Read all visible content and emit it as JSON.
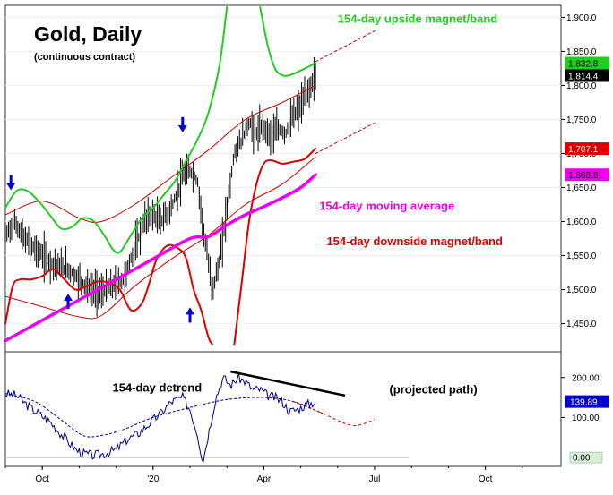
{
  "chart_data": {
    "type": "line",
    "title": "Gold, Daily",
    "subtitle": "(continuous contract)",
    "x_ticks": [
      "Oct",
      "'20",
      "Apr",
      "Jul",
      "Oct"
    ],
    "x_tick_months": [
      1,
      4,
      7,
      10,
      13
    ],
    "upper_panel": {
      "ylim": [
        1410,
        1915
      ],
      "y_ticks": [
        "1,900.0",
        "1,850.0",
        "1,800.0",
        "1,750.0",
        "1,700.0",
        "1,650.0",
        "1,600.0",
        "1,550.0",
        "1,500.0",
        "1,450.0"
      ],
      "y_tick_values": [
        1900,
        1850,
        1800,
        1750,
        1700,
        1650,
        1600,
        1550,
        1500,
        1450
      ],
      "price_points": [
        [
          0,
          1580
        ],
        [
          0.25,
          1600
        ],
        [
          0.5,
          1575
        ],
        [
          0.8,
          1560
        ],
        [
          1.1,
          1545
        ],
        [
          1.4,
          1535
        ],
        [
          1.7,
          1530
        ],
        [
          2.0,
          1515
        ],
        [
          2.3,
          1500
        ],
        [
          2.6,
          1495
        ],
        [
          2.9,
          1505
        ],
        [
          3.2,
          1515
        ],
        [
          3.4,
          1545
        ],
        [
          3.6,
          1575
        ],
        [
          3.8,
          1605
        ],
        [
          4.0,
          1610
        ],
        [
          4.2,
          1600
        ],
        [
          4.5,
          1620
        ],
        [
          4.8,
          1665
        ],
        [
          5.0,
          1675
        ],
        [
          5.2,
          1660
        ],
        [
          5.4,
          1575
        ],
        [
          5.6,
          1500
        ],
        [
          5.8,
          1540
        ],
        [
          6.0,
          1620
        ],
        [
          6.2,
          1700
        ],
        [
          6.4,
          1720
        ],
        [
          6.6,
          1745
        ],
        [
          6.8,
          1730
        ],
        [
          7.0,
          1740
        ],
        [
          7.2,
          1725
        ],
        [
          7.4,
          1735
        ],
        [
          7.6,
          1730
        ],
        [
          7.8,
          1755
        ],
        [
          8.0,
          1770
        ],
        [
          8.2,
          1790
        ],
        [
          8.4,
          1814.4
        ]
      ],
      "series": [
        {
          "name": "154-day upside magnet/band",
          "color": "#22cc22",
          "points": [
            [
              0,
              1620
            ],
            [
              0.3,
              1645
            ],
            [
              0.6,
              1645
            ],
            [
              0.9,
              1630
            ],
            [
              1.2,
              1610
            ],
            [
              1.5,
              1590
            ],
            [
              1.8,
              1592
            ],
            [
              2.1,
              1605
            ],
            [
              2.4,
              1600
            ],
            [
              2.7,
              1578
            ],
            [
              2.9,
              1560
            ],
            [
              3.1,
              1555
            ],
            [
              3.4,
              1580
            ],
            [
              3.7,
              1605
            ],
            [
              4.0,
              1620
            ],
            [
              4.3,
              1640
            ],
            [
              4.6,
              1660
            ],
            [
              4.9,
              1690
            ],
            [
              5.2,
              1720
            ],
            [
              5.5,
              1760
            ],
            [
              5.8,
              1830
            ],
            [
              6.0,
              1915
            ]
          ],
          "points_b": [
            [
              6.9,
              1915
            ],
            [
              7.1,
              1860
            ],
            [
              7.3,
              1825
            ],
            [
              7.5,
              1815
            ],
            [
              7.7,
              1815
            ],
            [
              8.0,
              1822
            ],
            [
              8.4,
              1832.8
            ]
          ]
        },
        {
          "name": "154-day downside magnet/band",
          "color": "#dd0000",
          "points": [
            [
              0,
              1450
            ],
            [
              0.2,
              1505
            ],
            [
              0.4,
              1515
            ],
            [
              0.7,
              1515
            ],
            [
              1.0,
              1520
            ],
            [
              1.3,
              1530
            ],
            [
              1.6,
              1515
            ],
            [
              1.9,
              1500
            ],
            [
              2.2,
              1505
            ],
            [
              2.5,
              1512
            ],
            [
              2.8,
              1510
            ],
            [
              3.1,
              1500
            ],
            [
              3.4,
              1470
            ],
            [
              3.7,
              1480
            ],
            [
              3.9,
              1510
            ],
            [
              4.1,
              1545
            ],
            [
              4.4,
              1565
            ],
            [
              4.7,
              1560
            ],
            [
              4.9,
              1545
            ],
            [
              5.1,
              1500
            ],
            [
              5.3,
              1470
            ],
            [
              5.5,
              1430
            ],
            [
              5.6,
              1420
            ]
          ],
          "points_b": [
            [
              6.2,
              1420
            ],
            [
              6.4,
              1510
            ],
            [
              6.6,
              1600
            ],
            [
              6.8,
              1655
            ],
            [
              7.0,
              1685
            ],
            [
              7.2,
              1690
            ],
            [
              7.5,
              1685
            ],
            [
              7.8,
              1688
            ],
            [
              8.1,
              1692
            ],
            [
              8.4,
              1707.1
            ]
          ]
        },
        {
          "name": "154-day moving average",
          "color": "#ee00ee",
          "points": [
            [
              0,
              1425
            ],
            [
              1,
              1455
            ],
            [
              2,
              1485
            ],
            [
              3,
              1515
            ],
            [
              4,
              1545
            ],
            [
              5,
              1575
            ],
            [
              5.5,
              1578
            ],
            [
              6,
              1595
            ],
            [
              6.5,
              1610
            ],
            [
              7,
              1622
            ],
            [
              7.5,
              1635
            ],
            [
              8,
              1650
            ],
            [
              8.4,
              1668.8
            ]
          ]
        },
        {
          "name": "upper band (thin)",
          "color": "#cc0000",
          "points": [
            [
              0,
              1610
            ],
            [
              1,
              1630
            ],
            [
              2,
              1605
            ],
            [
              2.6,
              1600
            ],
            [
              3.5,
              1625
            ],
            [
              4.5,
              1665
            ],
            [
              5.5,
              1705
            ],
            [
              6.5,
              1750
            ],
            [
              7.5,
              1775
            ],
            [
              8.4,
              1800
            ]
          ]
        },
        {
          "name": "lower band (thin)",
          "color": "#cc0000",
          "points": [
            [
              0,
              1490
            ],
            [
              1,
              1475
            ],
            [
              2,
              1460
            ],
            [
              2.6,
              1462
            ],
            [
              3.5,
              1505
            ],
            [
              4.5,
              1545
            ],
            [
              5.5,
              1580
            ],
            [
              6.5,
              1625
            ],
            [
              7.5,
              1655
            ],
            [
              8.4,
              1695
            ]
          ]
        },
        {
          "name": "upper projection",
          "color": "#cc0000",
          "dashed": true,
          "points": [
            [
              8.4,
              1835
            ],
            [
              10,
              1880
            ]
          ]
        },
        {
          "name": "lower projection",
          "color": "#cc0000",
          "dashed": true,
          "points": [
            [
              8.4,
              1700
            ],
            [
              10,
              1745
            ]
          ]
        }
      ],
      "annotations": [
        {
          "text": "154-day upside magnet/band",
          "color": "#22cc22",
          "x": 9.0,
          "y": 1892
        },
        {
          "text": "154-day moving average",
          "color": "#ee00ee",
          "x": 8.5,
          "y": 1617
        },
        {
          "text": "154-day downside magnet/band",
          "color": "#dd0000",
          "x": 8.7,
          "y": 1565
        }
      ],
      "arrows": [
        {
          "dir": "down",
          "x": 0.15,
          "y": 1650
        },
        {
          "dir": "up",
          "x": 1.7,
          "y": 1490
        },
        {
          "dir": "down",
          "x": 4.8,
          "y": 1735
        },
        {
          "dir": "up",
          "x": 5.0,
          "y": 1470
        }
      ],
      "value_badges": [
        {
          "text": "1,832.8",
          "value": 1832.8,
          "bg": "#22cc22",
          "fg": "#000000"
        },
        {
          "text": "1,814.4",
          "value": 1814.4,
          "bg": "#000000",
          "fg": "#ffffff"
        },
        {
          "text": "1,707.1",
          "value": 1707.1,
          "bg": "#dd0000",
          "fg": "#ffffff"
        },
        {
          "text": "1,668.8",
          "value": 1668.8,
          "bg": "#ee00ee",
          "fg": "#000000"
        }
      ]
    },
    "lower_panel": {
      "ylim": [
        -20,
        260
      ],
      "y_ticks": [
        "200.00",
        "100.00"
      ],
      "y_tick_values": [
        200,
        100
      ],
      "zero_label": "0.00",
      "detrend_points": [
        [
          0,
          160
        ],
        [
          0.3,
          155
        ],
        [
          0.6,
          130
        ],
        [
          0.9,
          110
        ],
        [
          1.2,
          90
        ],
        [
          1.5,
          60
        ],
        [
          1.7,
          40
        ],
        [
          1.9,
          20
        ],
        [
          2.1,
          10
        ],
        [
          2.4,
          5
        ],
        [
          2.7,
          10
        ],
        [
          3.0,
          20
        ],
        [
          3.3,
          45
        ],
        [
          3.6,
          60
        ],
        [
          3.9,
          85
        ],
        [
          4.2,
          110
        ],
        [
          4.5,
          140
        ],
        [
          4.8,
          150
        ],
        [
          5.0,
          120
        ],
        [
          5.2,
          60
        ],
        [
          5.35,
          -10
        ],
        [
          5.5,
          60
        ],
        [
          5.7,
          150
        ],
        [
          5.9,
          200
        ],
        [
          6.1,
          180
        ],
        [
          6.3,
          200
        ],
        [
          6.5,
          190
        ],
        [
          6.7,
          170
        ],
        [
          6.9,
          170
        ],
        [
          7.1,
          155
        ],
        [
          7.3,
          150
        ],
        [
          7.5,
          140
        ],
        [
          7.7,
          115
        ],
        [
          7.9,
          120
        ],
        [
          8.1,
          130
        ],
        [
          8.4,
          139.89
        ]
      ],
      "cycle_points": [
        [
          0,
          160
        ],
        [
          0.8,
          140
        ],
        [
          1.5,
          95
        ],
        [
          2.1,
          55
        ],
        [
          2.6,
          55
        ],
        [
          3.2,
          70
        ],
        [
          4,
          100
        ],
        [
          5,
          125
        ],
        [
          6,
          145
        ],
        [
          7,
          150
        ],
        [
          7.8,
          140
        ],
        [
          8.6,
          110
        ],
        [
          9.4,
          80
        ],
        [
          10,
          95
        ]
      ],
      "projected_line": [
        [
          6.1,
          215
        ],
        [
          9.2,
          155
        ]
      ],
      "annotations": [
        {
          "text": "154-day detrend",
          "x": 2.9,
          "y": 165
        },
        {
          "text": "(projected path)",
          "x": 10.4,
          "y": 160
        }
      ],
      "value_badge": {
        "text": "139.89",
        "value": 139.89,
        "bg": "#0000cc",
        "fg": "#ffffff"
      }
    }
  }
}
